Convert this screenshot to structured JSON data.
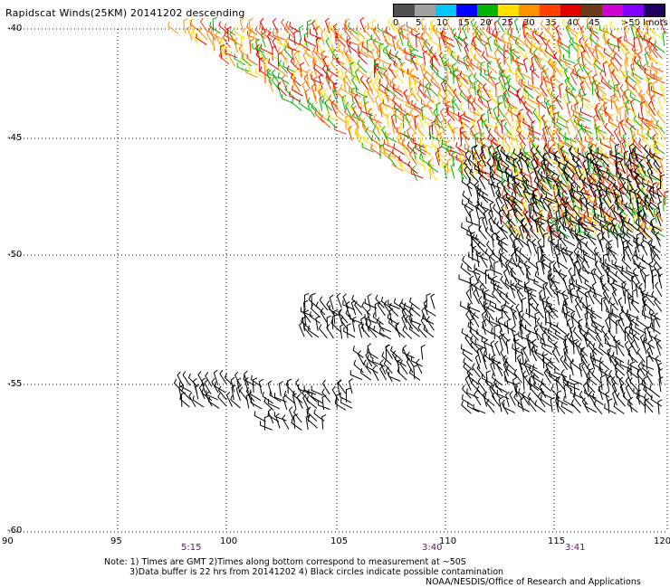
{
  "title": "Rapidscat Winds(25KM) 20141202 descending",
  "legend": {
    "colors": [
      "#505050",
      "#a0a0a0",
      "#00c8ff",
      "#0000ff",
      "#00b400",
      "#ffe000",
      "#ff9000",
      "#ff4000",
      "#e00000",
      "#6b3a1a",
      "#d000d0",
      "#8000ff",
      "#200060"
    ],
    "labels": [
      "0",
      "5",
      "10",
      "15",
      "20",
      "25",
      "30",
      "35",
      "40",
      "45",
      ">50 knots"
    ]
  },
  "lat_labels": [
    "-40",
    "-45",
    "-50",
    "-55",
    "-60"
  ],
  "lon_labels": [
    "90",
    "95",
    "100",
    "105",
    "110",
    "115",
    "120"
  ],
  "times": [
    "5:15",
    "3:40",
    "3:41"
  ],
  "note": {
    "line1": "Note: 1) Times are GMT 2)Times along bottom correspond to measurement at ~50S",
    "line2": "3)Data buffer is 22 hrs from 20141202 4) Black circles indicate possible contamination"
  },
  "credit": "NOAA/NESDIS/Office of Research and Applications"
}
